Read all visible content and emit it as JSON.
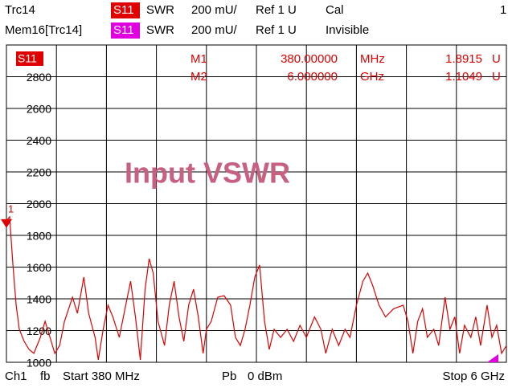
{
  "header": {
    "line1": {
      "trace": "Trc14",
      "param": "S11",
      "format": "SWR",
      "scale": "200 mU/",
      "ref": "Ref 1 U",
      "status": "Cal",
      "channel": "1"
    },
    "line2": {
      "trace": "Mem16[Trc14]",
      "param": "S11",
      "format": "SWR",
      "scale": "200 mU/",
      "ref": "Ref 1 U",
      "status": "Invisible"
    }
  },
  "footer": {
    "channel": "Ch1",
    "mode": "fb",
    "start": "Start 380 MHz",
    "power_label": "Pb",
    "power": "0 dBm",
    "stop": "Stop 6 GHz"
  },
  "markers": [
    {
      "name": "M1",
      "stimulus": "380.00000",
      "stimulus_unit": "MHz",
      "response": "1.8915",
      "response_unit": "U"
    },
    {
      "name": "M2",
      "stimulus": "6.000000",
      "stimulus_unit": "GHz",
      "response": "1.1049",
      "response_unit": "U"
    }
  ],
  "marker_tag": "1",
  "chart_data": {
    "type": "line",
    "title": "Input VSWR",
    "trace_label": "S11",
    "xlim": [
      380,
      6000
    ],
    "ylim": [
      1000,
      3000
    ],
    "yticks": [
      1000,
      1200,
      1400,
      1600,
      1800,
      2000,
      2200,
      2400,
      2600,
      2800
    ],
    "grid": true,
    "x": [
      380,
      416,
      453,
      489,
      525,
      579,
      634,
      688,
      761,
      815,
      870,
      924,
      978,
      1032,
      1123,
      1178,
      1250,
      1304,
      1377,
      1413,
      1468,
      1522,
      1576,
      1649,
      1721,
      1776,
      1830,
      1885,
      1939,
      1985,
      2030,
      2084,
      2157,
      2211,
      2265,
      2320,
      2374,
      2428,
      2483,
      2537,
      2591,
      2628,
      2682,
      2755,
      2827,
      2900,
      2954,
      3009,
      3063,
      3117,
      3172,
      3226,
      3281,
      3335,
      3389,
      3462,
      3535,
      3607,
      3680,
      3752,
      3843,
      3915,
      3970,
      4042,
      4115,
      4187,
      4242,
      4314,
      4387,
      4441,
      4496,
      4568,
      4641,
      4731,
      4840,
      4894,
      4949,
      5003,
      5058,
      5112,
      5184,
      5239,
      5311,
      5366,
      5420,
      5474,
      5529,
      5601,
      5656,
      5710,
      5783,
      5837,
      5891,
      5946,
      6000
    ],
    "series": [
      {
        "name": "S11",
        "color": "#e00000",
        "values": [
          1892,
          1917,
          1613,
          1360,
          1208,
          1132,
          1081,
          1056,
          1157,
          1258,
          1157,
          1056,
          1106,
          1258,
          1410,
          1309,
          1537,
          1309,
          1157,
          1015,
          1208,
          1360,
          1286,
          1157,
          1360,
          1511,
          1286,
          1015,
          1461,
          1653,
          1562,
          1258,
          1106,
          1360,
          1511,
          1286,
          1132,
          1360,
          1461,
          1286,
          1056,
          1208,
          1258,
          1410,
          1420,
          1360,
          1157,
          1106,
          1208,
          1360,
          1537,
          1613,
          1258,
          1081,
          1208,
          1157,
          1208,
          1132,
          1233,
          1157,
          1286,
          1208,
          1056,
          1208,
          1106,
          1208,
          1157,
          1360,
          1511,
          1562,
          1486,
          1360,
          1286,
          1337,
          1360,
          1258,
          1056,
          1258,
          1337,
          1157,
          1208,
          1106,
          1410,
          1208,
          1286,
          1056,
          1233,
          1157,
          1286,
          1106,
          1360,
          1157,
          1233,
          1056,
          1105
        ]
      }
    ]
  }
}
